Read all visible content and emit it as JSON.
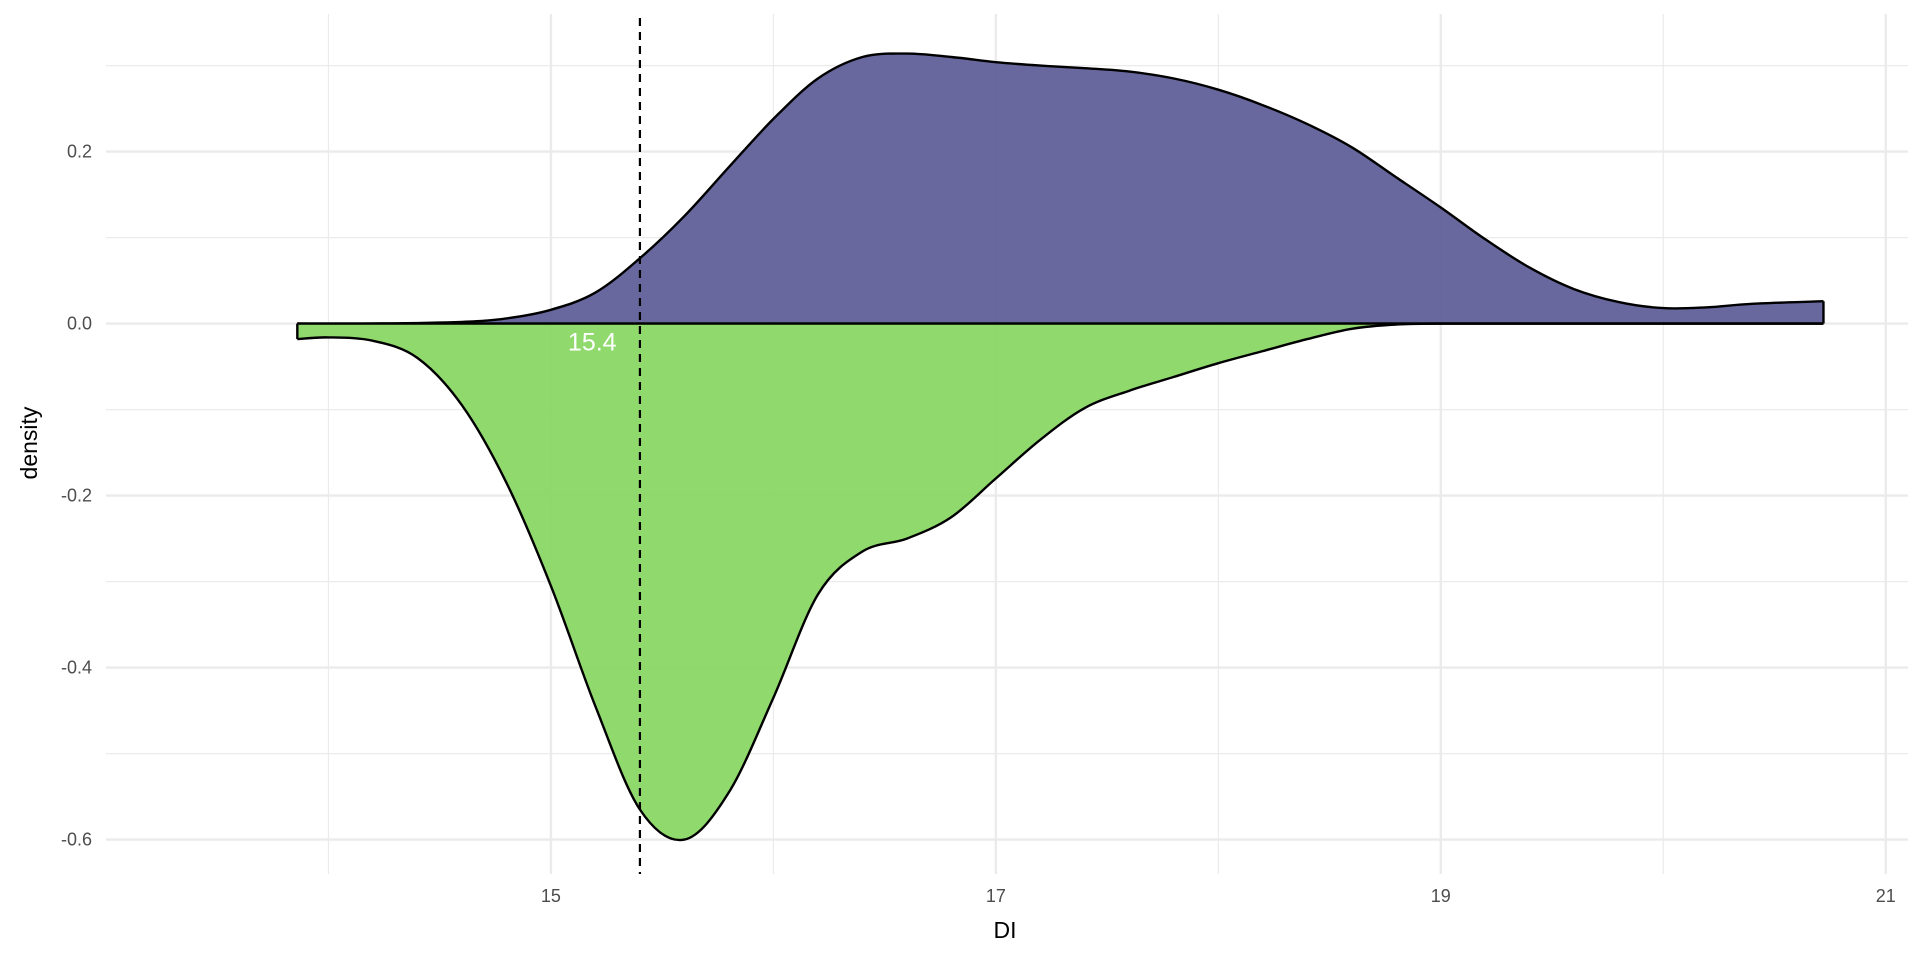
{
  "chart_data": {
    "type": "area",
    "title": "",
    "xlabel": "DI",
    "ylabel": "density",
    "xlim": [
      13.0,
      21.1
    ],
    "ylim": [
      -0.64,
      0.36
    ],
    "x_ticks": [
      15,
      17,
      19,
      21
    ],
    "x_tick_labels": [
      "15",
      "17",
      "19",
      "21"
    ],
    "x_minor_ticks": [
      14,
      16,
      18,
      20
    ],
    "y_ticks": [
      0.2,
      0.0,
      -0.2,
      -0.4,
      -0.6
    ],
    "y_tick_labels": [
      "0.2",
      "0.0",
      "-0.2",
      "-0.4",
      "-0.6"
    ],
    "y_minor_ticks": [
      0.3,
      0.1,
      -0.1,
      -0.3,
      -0.5
    ],
    "grid": true,
    "legend": "none",
    "series": [
      {
        "color": "#5b5b96",
        "direction": "up",
        "x": [
          13.86,
          14.2,
          14.6,
          14.8,
          15.0,
          15.2,
          15.4,
          15.6,
          15.8,
          16.0,
          16.2,
          16.4,
          16.6,
          16.8,
          17.0,
          17.2,
          17.4,
          17.6,
          17.8,
          18.0,
          18.2,
          18.4,
          18.6,
          18.8,
          19.0,
          19.2,
          19.4,
          19.6,
          19.8,
          20.0,
          20.2,
          20.4,
          20.72
        ],
        "y": [
          0.0,
          0.0,
          0.002,
          0.006,
          0.016,
          0.036,
          0.076,
          0.125,
          0.182,
          0.238,
          0.285,
          0.31,
          0.314,
          0.31,
          0.304,
          0.3,
          0.297,
          0.293,
          0.285,
          0.272,
          0.254,
          0.232,
          0.205,
          0.17,
          0.135,
          0.098,
          0.065,
          0.04,
          0.025,
          0.018,
          0.019,
          0.023,
          0.026
        ]
      },
      {
        "color": "#86d661",
        "direction": "down",
        "x": [
          13.86,
          14.0,
          14.2,
          14.4,
          14.6,
          14.8,
          15.0,
          15.2,
          15.4,
          15.6,
          15.8,
          16.0,
          16.2,
          16.4,
          16.6,
          16.8,
          17.0,
          17.2,
          17.4,
          17.6,
          17.8,
          18.0,
          18.2,
          18.4,
          18.6,
          18.8,
          19.0,
          19.4,
          20.0,
          20.72
        ],
        "y": [
          -0.018,
          -0.016,
          -0.02,
          -0.04,
          -0.095,
          -0.185,
          -0.305,
          -0.445,
          -0.565,
          -0.6,
          -0.545,
          -0.435,
          -0.315,
          -0.265,
          -0.25,
          -0.225,
          -0.18,
          -0.135,
          -0.098,
          -0.078,
          -0.062,
          -0.046,
          -0.032,
          -0.018,
          -0.006,
          -0.001,
          0.0,
          0.0,
          0.0,
          0.0
        ]
      }
    ],
    "reference_line": {
      "x": 15.4,
      "style": "dashed",
      "label": "15.4"
    }
  }
}
